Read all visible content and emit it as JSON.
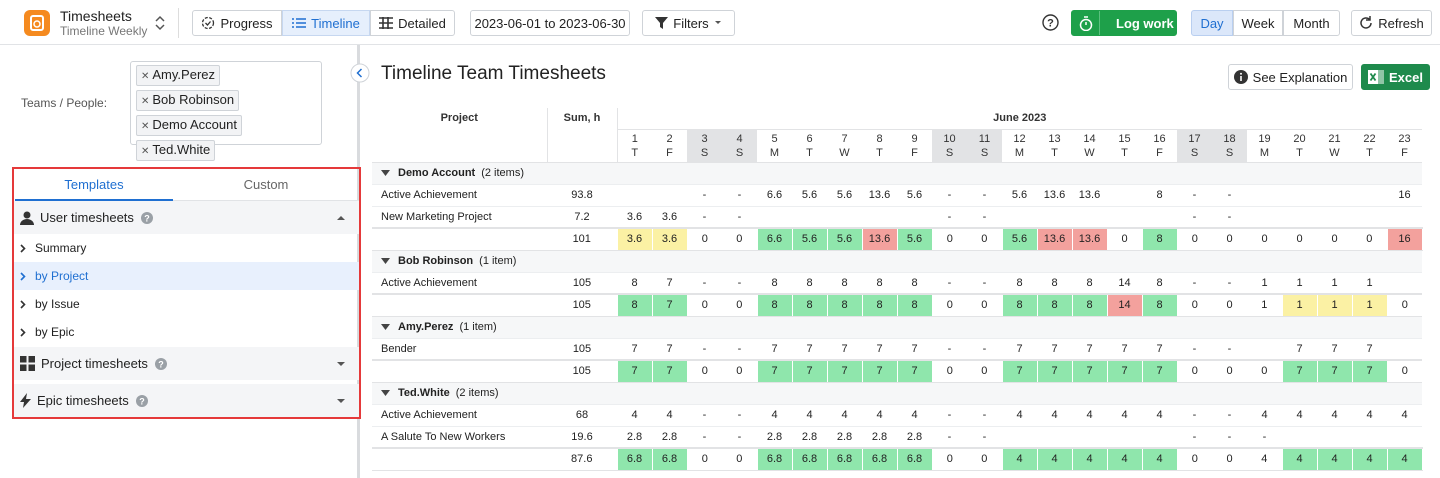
{
  "toolbar": {
    "app_title": "Timesheets",
    "app_subtitle": "Timeline Weekly",
    "views": [
      "Progress",
      "Timeline",
      "Detailed"
    ],
    "date_range": "2023-06-01 to 2023-06-30",
    "filters": "Filters",
    "log_work": "Log work",
    "periods": [
      "Day",
      "Week",
      "Month"
    ],
    "refresh": "Refresh"
  },
  "sidebar": {
    "people_label": "Teams / People:",
    "people": [
      "Amy.Perez",
      "Bob Robinson",
      "Demo Account",
      "Ted.White"
    ],
    "tabs": [
      "Templates",
      "Custom"
    ],
    "sections": [
      {
        "title": "User timesheets",
        "items": [
          "Summary",
          "by Project",
          "by Issue",
          "by Epic"
        ]
      },
      {
        "title": "Project timesheets"
      },
      {
        "title": "Epic timesheets"
      }
    ]
  },
  "main": {
    "title": "Timeline Team Timesheets",
    "explain": "See Explanation",
    "excel": "Excel",
    "table": {
      "project_header": "Project",
      "sum_header": "Sum, h",
      "month": "June 2023",
      "highlight_colors": {
        "low": "#fbf1a4",
        "ok": "#8fe6ac",
        "high": "#f3a19d"
      },
      "weekend_color": "#e2e3e5",
      "days": [
        {
          "date": 1,
          "weekday": "T",
          "weekend": false
        },
        {
          "date": 2,
          "weekday": "F",
          "weekend": false
        },
        {
          "date": 3,
          "weekday": "S",
          "weekend": true
        },
        {
          "date": 4,
          "weekday": "S",
          "weekend": true
        },
        {
          "date": 5,
          "weekday": "M",
          "weekend": false
        },
        {
          "date": 6,
          "weekday": "T",
          "weekend": false
        },
        {
          "date": 7,
          "weekday": "W",
          "weekend": false
        },
        {
          "date": 8,
          "weekday": "T",
          "weekend": false
        },
        {
          "date": 9,
          "weekday": "F",
          "weekend": false
        },
        {
          "date": 10,
          "weekday": "S",
          "weekend": true
        },
        {
          "date": 11,
          "weekday": "S",
          "weekend": true
        },
        {
          "date": 12,
          "weekday": "M",
          "weekend": false
        },
        {
          "date": 13,
          "weekday": "T",
          "weekend": false
        },
        {
          "date": 14,
          "weekday": "W",
          "weekend": false
        },
        {
          "date": 15,
          "weekday": "T",
          "weekend": false
        },
        {
          "date": 16,
          "weekday": "F",
          "weekend": false
        },
        {
          "date": 17,
          "weekday": "S",
          "weekend": true
        },
        {
          "date": 18,
          "weekday": "S",
          "weekend": true
        },
        {
          "date": 19,
          "weekday": "M",
          "weekend": false
        },
        {
          "date": 20,
          "weekday": "T",
          "weekend": false
        },
        {
          "date": 21,
          "weekday": "W",
          "weekend": false
        },
        {
          "date": 22,
          "weekday": "T",
          "weekend": false
        },
        {
          "date": 23,
          "weekday": "F",
          "weekend": false
        }
      ],
      "groups": [
        {
          "name": "Demo Account",
          "count": "(2 items)",
          "rows": [
            {
              "project": "Active Achievement",
              "sum": 93.8,
              "cells": [
                null,
                null,
                "-",
                "-",
                6.6,
                5.6,
                5.6,
                13.6,
                5.6,
                "-",
                "-",
                5.6,
                13.6,
                13.6,
                null,
                8,
                "-",
                "-",
                null,
                null,
                null,
                null,
                16
              ]
            },
            {
              "project": "New Marketing Project",
              "sum": 7.2,
              "cells": [
                3.6,
                3.6,
                "-",
                "-",
                null,
                null,
                null,
                null,
                null,
                "-",
                "-",
                null,
                null,
                null,
                null,
                null,
                "-",
                "-",
                null,
                null,
                null,
                null,
                null
              ]
            }
          ],
          "total": {
            "sum": 101,
            "cells": [
              3.6,
              3.6,
              0,
              0,
              6.6,
              5.6,
              5.6,
              13.6,
              5.6,
              0,
              0,
              5.6,
              13.6,
              13.6,
              0,
              8,
              0,
              0,
              0,
              0,
              0,
              0,
              16
            ],
            "status": [
              "low",
              "low",
              null,
              null,
              "ok",
              "ok",
              "ok",
              "high",
              "ok",
              null,
              null,
              "ok",
              "high",
              "high",
              null,
              "ok",
              null,
              null,
              null,
              null,
              null,
              null,
              "high"
            ]
          }
        },
        {
          "name": "Bob Robinson",
          "count": "(1 item)",
          "rows": [
            {
              "project": "Active Achievement",
              "sum": 105,
              "cells": [
                8,
                7,
                "-",
                "-",
                8,
                8,
                8,
                8,
                8,
                "-",
                "-",
                8,
                8,
                8,
                14,
                8,
                "-",
                "-",
                1,
                1,
                1,
                1,
                null
              ]
            }
          ],
          "total": {
            "sum": 105,
            "cells": [
              8,
              7,
              0,
              0,
              8,
              8,
              8,
              8,
              8,
              0,
              0,
              8,
              8,
              8,
              14,
              8,
              0,
              0,
              1,
              1,
              1,
              1,
              0
            ],
            "status": [
              "ok",
              "ok",
              null,
              null,
              "ok",
              "ok",
              "ok",
              "ok",
              "ok",
              null,
              null,
              "ok",
              "ok",
              "ok",
              "high",
              "ok",
              null,
              null,
              null,
              "low",
              "low",
              "low",
              null
            ]
          }
        },
        {
          "name": "Amy.Perez",
          "count": "(1 item)",
          "rows": [
            {
              "project": "Bender",
              "sum": 105,
              "cells": [
                7,
                7,
                "-",
                "-",
                7,
                7,
                7,
                7,
                7,
                "-",
                "-",
                7,
                7,
                7,
                7,
                7,
                "-",
                "-",
                null,
                7,
                7,
                7,
                null
              ]
            }
          ],
          "total": {
            "sum": 105,
            "cells": [
              7,
              7,
              0,
              0,
              7,
              7,
              7,
              7,
              7,
              0,
              0,
              7,
              7,
              7,
              7,
              7,
              0,
              0,
              0,
              7,
              7,
              7,
              0
            ],
            "status": [
              "ok",
              "ok",
              null,
              null,
              "ok",
              "ok",
              "ok",
              "ok",
              "ok",
              null,
              null,
              "ok",
              "ok",
              "ok",
              "ok",
              "ok",
              null,
              null,
              null,
              "ok",
              "ok",
              "ok",
              null
            ]
          }
        },
        {
          "name": "Ted.White",
          "count": "(2 items)",
          "rows": [
            {
              "project": "Active Achievement",
              "sum": 68,
              "cells": [
                4,
                4,
                "-",
                "-",
                4,
                4,
                4,
                4,
                4,
                "-",
                "-",
                4,
                4,
                4,
                4,
                4,
                "-",
                "-",
                4,
                4,
                4,
                4,
                4
              ]
            },
            {
              "project": "A Salute To New Workers",
              "sum": 19.6,
              "cells": [
                2.8,
                2.8,
                "-",
                "-",
                2.8,
                2.8,
                2.8,
                2.8,
                2.8,
                "-",
                "-",
                null,
                null,
                null,
                null,
                null,
                "-",
                "-",
                "-",
                null,
                null,
                null,
                null
              ]
            }
          ],
          "total": {
            "sum": 87.6,
            "cells": [
              6.8,
              6.8,
              0,
              0,
              6.8,
              6.8,
              6.8,
              6.8,
              6.8,
              0,
              0,
              4,
              4,
              4,
              4,
              4,
              0,
              0,
              4,
              4,
              4,
              4,
              4
            ],
            "status": [
              "ok",
              "ok",
              null,
              null,
              "ok",
              "ok",
              "ok",
              "ok",
              "ok",
              null,
              null,
              "ok",
              "ok",
              "ok",
              "ok",
              "ok",
              null,
              null,
              null,
              "ok",
              "ok",
              "ok",
              "ok"
            ]
          }
        }
      ]
    }
  }
}
